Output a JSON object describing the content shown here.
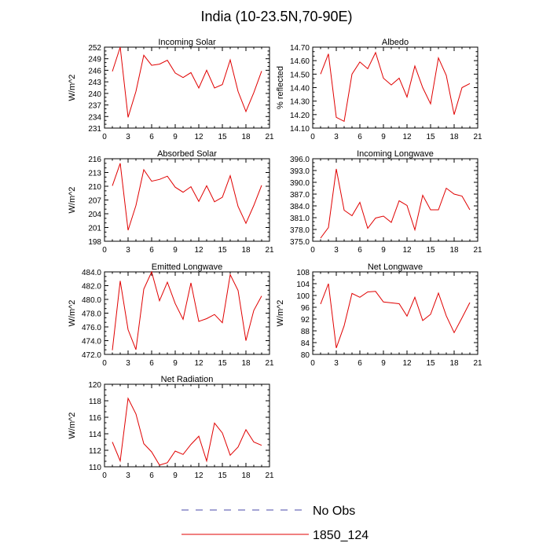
{
  "figure": {
    "title": "India (10-23.5N,70-90E)",
    "legend": [
      {
        "label": "No Obs",
        "color": "#4a4aa8",
        "dash": true
      },
      {
        "label": "1850_124",
        "color": "#e00000",
        "dash": false
      }
    ]
  },
  "chart_data": [
    {
      "type": "line",
      "title": "Incoming Solar",
      "ylabel": "W/m^2",
      "xlim": [
        0,
        21
      ],
      "ylim": [
        231,
        252
      ],
      "xticks": [
        0,
        3,
        6,
        9,
        12,
        15,
        18,
        21
      ],
      "yticks": [
        231,
        234,
        237,
        240,
        243,
        246,
        249,
        252
      ],
      "ydecimals": 0,
      "series": [
        {
          "color": "#e00000",
          "x": [
            1,
            2,
            3,
            4,
            5,
            6,
            7,
            8,
            9,
            10,
            11,
            12,
            13,
            14,
            15,
            16,
            17,
            18,
            19,
            20
          ],
          "y": [
            245.7,
            252.0,
            233.8,
            240.5,
            249.9,
            247.3,
            247.6,
            248.6,
            245.3,
            244.1,
            245.4,
            241.4,
            246.0,
            241.4,
            242.3,
            248.7,
            240.5,
            235.3,
            240.2,
            245.8
          ]
        }
      ]
    },
    {
      "type": "line",
      "title": "Albedo",
      "ylabel": "% reflected",
      "xlim": [
        0,
        21
      ],
      "ylim": [
        14.1,
        14.7
      ],
      "xticks": [
        0,
        3,
        6,
        9,
        12,
        15,
        18,
        21
      ],
      "yticks": [
        14.1,
        14.2,
        14.3,
        14.4,
        14.5,
        14.6,
        14.7
      ],
      "ydecimals": 2,
      "series": [
        {
          "color": "#e00000",
          "x": [
            1,
            2,
            3,
            4,
            5,
            6,
            7,
            8,
            9,
            10,
            11,
            12,
            13,
            14,
            15,
            16,
            17,
            18,
            19,
            20
          ],
          "y": [
            14.5,
            14.65,
            14.18,
            14.15,
            14.5,
            14.59,
            14.54,
            14.66,
            14.47,
            14.42,
            14.47,
            14.33,
            14.56,
            14.4,
            14.28,
            14.62,
            14.49,
            14.2,
            14.4,
            14.43
          ]
        }
      ]
    },
    {
      "type": "line",
      "title": "Absorbed Solar",
      "ylabel": "W/m^2",
      "xlim": [
        0,
        21
      ],
      "ylim": [
        198,
        216
      ],
      "xticks": [
        0,
        3,
        6,
        9,
        12,
        15,
        18,
        21
      ],
      "yticks": [
        198,
        201,
        204,
        207,
        210,
        213,
        216
      ],
      "ydecimals": 0,
      "series": [
        {
          "color": "#e00000",
          "x": [
            1,
            2,
            3,
            4,
            5,
            6,
            7,
            8,
            9,
            10,
            11,
            12,
            13,
            14,
            15,
            16,
            17,
            18,
            19,
            20
          ],
          "y": [
            210.1,
            215.0,
            200.4,
            205.8,
            213.6,
            211.1,
            211.5,
            212.2,
            209.8,
            208.7,
            209.9,
            206.7,
            210.1,
            206.6,
            207.6,
            212.3,
            205.6,
            201.9,
            205.8,
            210.2
          ]
        }
      ]
    },
    {
      "type": "line",
      "title": "Incoming Longwave",
      "ylabel": "",
      "xlim": [
        0,
        21
      ],
      "ylim": [
        375,
        396
      ],
      "xticks": [
        0,
        3,
        6,
        9,
        12,
        15,
        18,
        21
      ],
      "yticks": [
        375,
        378,
        381,
        384,
        387,
        390,
        393,
        396
      ],
      "ydecimals": 1,
      "series": [
        {
          "color": "#e00000",
          "x": [
            1,
            2,
            3,
            4,
            5,
            6,
            7,
            8,
            9,
            10,
            11,
            12,
            13,
            14,
            15,
            16,
            17,
            18,
            19,
            20
          ],
          "y": [
            375.8,
            378.5,
            393.4,
            382.9,
            381.5,
            384.9,
            378.3,
            380.9,
            381.4,
            379.8,
            385.3,
            384.1,
            377.9,
            386.7,
            383.0,
            383.0,
            388.5,
            387.0,
            386.5,
            383.0
          ]
        }
      ]
    },
    {
      "type": "line",
      "title": "Emitted Longwave",
      "ylabel": "W/m^2",
      "xlim": [
        0,
        21
      ],
      "ylim": [
        472,
        484
      ],
      "xticks": [
        0,
        3,
        6,
        9,
        12,
        15,
        18,
        21
      ],
      "yticks": [
        472,
        474,
        476,
        478,
        480,
        482,
        484
      ],
      "ydecimals": 1,
      "series": [
        {
          "color": "#e00000",
          "x": [
            1,
            2,
            3,
            4,
            5,
            6,
            7,
            8,
            9,
            10,
            11,
            12,
            13,
            14,
            15,
            16,
            17,
            18,
            19,
            20
          ],
          "y": [
            472.6,
            482.7,
            475.6,
            472.7,
            481.5,
            484.0,
            479.8,
            482.5,
            479.4,
            477.1,
            482.4,
            476.8,
            477.2,
            477.8,
            476.6,
            483.6,
            481.3,
            474.0,
            478.4,
            480.5
          ]
        }
      ]
    },
    {
      "type": "line",
      "title": "Net Longwave",
      "ylabel": "W/m^2",
      "xlim": [
        0,
        21
      ],
      "ylim": [
        80,
        108
      ],
      "xticks": [
        0,
        3,
        6,
        9,
        12,
        15,
        18,
        21
      ],
      "yticks": [
        80,
        84,
        88,
        92,
        96,
        100,
        104,
        108
      ],
      "ydecimals": 0,
      "series": [
        {
          "color": "#e00000",
          "x": [
            1,
            2,
            3,
            4,
            5,
            6,
            7,
            8,
            9,
            10,
            11,
            12,
            13,
            14,
            15,
            16,
            17,
            18,
            19,
            20
          ],
          "y": [
            97.1,
            104.0,
            82.2,
            89.7,
            100.7,
            99.4,
            101.2,
            101.4,
            97.8,
            97.5,
            97.2,
            93.0,
            99.4,
            91.5,
            93.6,
            100.8,
            93.1,
            87.4,
            92.4,
            97.6
          ]
        }
      ]
    },
    {
      "type": "line",
      "title": "Net Radiation",
      "ylabel": "W/m^2",
      "xlim": [
        0,
        21
      ],
      "ylim": [
        110,
        120
      ],
      "xticks": [
        0,
        3,
        6,
        9,
        12,
        15,
        18,
        21
      ],
      "yticks": [
        110,
        112,
        114,
        116,
        118,
        120
      ],
      "ydecimals": 0,
      "series": [
        {
          "color": "#e00000",
          "x": [
            1,
            2,
            3,
            4,
            5,
            6,
            7,
            8,
            9,
            10,
            11,
            12,
            13,
            14,
            15,
            16,
            17,
            18,
            19,
            20
          ],
          "y": [
            113.0,
            110.7,
            118.3,
            116.4,
            112.8,
            111.8,
            110.2,
            110.5,
            111.9,
            111.5,
            112.7,
            113.7,
            110.7,
            115.3,
            114.1,
            111.4,
            112.4,
            114.5,
            113.0,
            112.6
          ]
        }
      ]
    }
  ]
}
